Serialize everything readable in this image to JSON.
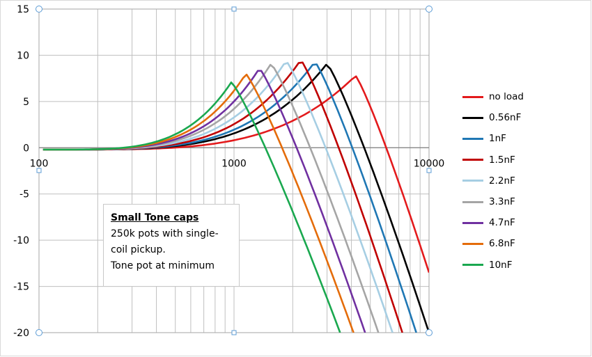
{
  "chart_data": {
    "type": "line",
    "title": "",
    "xlabel": "",
    "ylabel": "",
    "xscale": "log",
    "xlim": [
      100,
      10000
    ],
    "ylim": [
      -20,
      15
    ],
    "x_ticks": [
      "100",
      "1000",
      "10000"
    ],
    "y_ticks": [
      "15",
      "10",
      "5",
      "0",
      "-5",
      "-10",
      "-15",
      "-20"
    ],
    "grid": true,
    "legend_position": "right",
    "annotation": {
      "title": "Small Tone caps",
      "lines": [
        "250k pots with single-",
        "coil pickup.",
        "Tone pot at minimum"
      ]
    },
    "series": [
      {
        "name": "no load",
        "color": "#e31a1c",
        "peak_freq": 4200,
        "peak_db": 7.8,
        "base_freq": 105,
        "base_db": -0.2,
        "end_freq": 10000,
        "end_db": -13.5
      },
      {
        "name": "0.56nF",
        "color": "#000000",
        "peak_freq": 3000,
        "peak_db": 9.1,
        "base_freq": 105,
        "base_db": -0.2,
        "end_freq": 10000,
        "end_db": -20
      },
      {
        "name": "1nF",
        "color": "#1f77b4",
        "peak_freq": 2600,
        "peak_db": 9.3,
        "base_freq": 105,
        "base_db": -0.2,
        "end_freq": 8600,
        "end_db": -20
      },
      {
        "name": "1.5nF",
        "color": "#c00000",
        "peak_freq": 2200,
        "peak_db": 9.5,
        "base_freq": 105,
        "base_db": -0.2,
        "end_freq": 7300,
        "end_db": -20
      },
      {
        "name": "2.2nF",
        "color": "#a6cee3",
        "peak_freq": 1850,
        "peak_db": 9.4,
        "base_freq": 105,
        "base_db": -0.2,
        "end_freq": 6500,
        "end_db": -20
      },
      {
        "name": "3.3nF",
        "color": "#a5a5a5",
        "peak_freq": 1550,
        "peak_db": 9.1,
        "base_freq": 105,
        "base_db": -0.2,
        "end_freq": 5500,
        "end_db": -20
      },
      {
        "name": "4.7nF",
        "color": "#7030a0",
        "peak_freq": 1350,
        "peak_db": 8.6,
        "base_freq": 105,
        "base_db": -0.2,
        "end_freq": 4700,
        "end_db": -20
      },
      {
        "name": "6.8nF",
        "color": "#e46c0a",
        "peak_freq": 1150,
        "peak_db": 8.0,
        "base_freq": 105,
        "base_db": -0.2,
        "end_freq": 4100,
        "end_db": -20
      },
      {
        "name": "10nF",
        "color": "#1aa84f",
        "peak_freq": 970,
        "peak_db": 7.1,
        "base_freq": 105,
        "base_db": -0.2,
        "end_freq": 3500,
        "end_db": -20
      }
    ]
  }
}
